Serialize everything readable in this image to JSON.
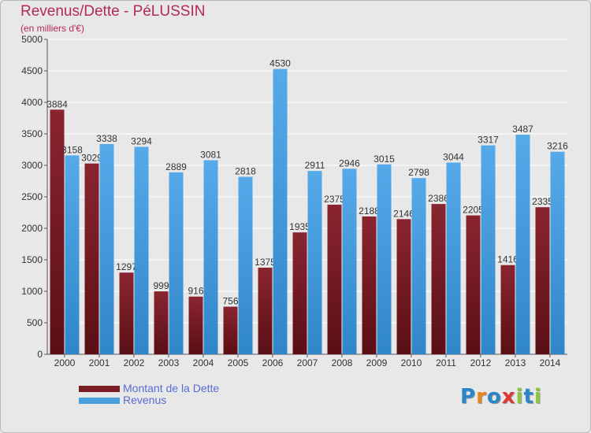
{
  "header": {
    "title": "Revenus/Dette - PéLUSSIN",
    "subtitle": "(en milliers d'€)"
  },
  "legend": {
    "debt_label": "Montant de la Dette",
    "revenue_label": "Revenus"
  },
  "logo": {
    "text": "Proxiti",
    "letter_colors": [
      "#2a86c9",
      "#e9861a",
      "#2a86c9",
      "#e03636",
      "#8cc63f",
      "#2a86c9",
      "#8cc63f"
    ]
  },
  "colors": {
    "debt": "#7a1c24",
    "revenue": "#4a9fe0",
    "grid": "#ffffff",
    "axis_text": "#333333"
  },
  "chart_data": {
    "type": "bar",
    "categories": [
      "2000",
      "2001",
      "2002",
      "2003",
      "2004",
      "2005",
      "2006",
      "2007",
      "2008",
      "2009",
      "2010",
      "2011",
      "2012",
      "2013",
      "2014"
    ],
    "series": [
      {
        "name": "Montant de la Dette",
        "values": [
          3884,
          3029,
          1297,
          999,
          916,
          756,
          1375,
          1935,
          2375,
          2188,
          2146,
          2386,
          2205,
          1416,
          2335
        ],
        "labels": [
          "3884",
          "3029",
          "1297",
          "999",
          "916",
          "756",
          "1375",
          "1935",
          "2375",
          "2188",
          "2146",
          "2386",
          "2205",
          "1416",
          "2335"
        ]
      },
      {
        "name": "Revenus",
        "values": [
          3158,
          3338,
          3294,
          2889,
          3081,
          2818,
          4530,
          2911,
          2946,
          3015,
          2798,
          3044,
          3317,
          3487,
          3216
        ],
        "labels": [
          "3158",
          "3338",
          "3294",
          "2889",
          "3081",
          "2818",
          "4530",
          "2911",
          "2946",
          "3015",
          "2798",
          "3044",
          "3317",
          "3487",
          "3216"
        ]
      }
    ],
    "yticks": [
      "0",
      "500",
      "1000",
      "1500",
      "2000",
      "2500",
      "3000",
      "3500",
      "4000",
      "4500",
      "5000"
    ],
    "ylim": [
      0,
      5000
    ],
    "grid": true,
    "legend_position": "bottom-left"
  }
}
